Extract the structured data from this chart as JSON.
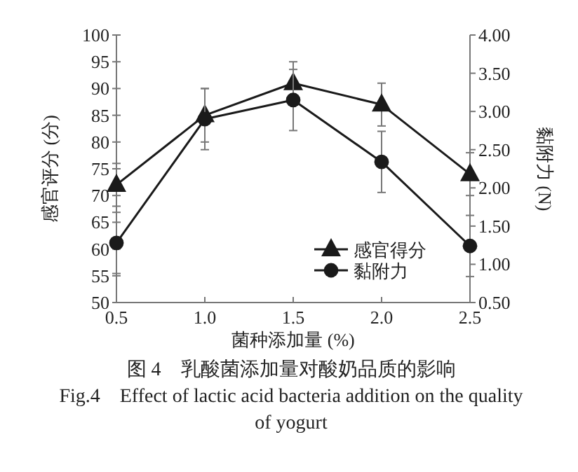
{
  "chart_data": {
    "type": "line",
    "xlabel": "菌种添加量 (%)",
    "ylabel": "感官评分 (分)",
    "y2label": "黏附力 (N)",
    "x": [
      0.5,
      1.0,
      1.5,
      2.0,
      2.5
    ],
    "xlim": [
      0.5,
      2.5
    ],
    "xticks": [
      {
        "value": 0.5,
        "label": "0.5"
      },
      {
        "value": 1.0,
        "label": "1.0"
      },
      {
        "value": 1.5,
        "label": "1.5"
      },
      {
        "value": 2.0,
        "label": "2.0"
      },
      {
        "value": 2.5,
        "label": "2.5"
      }
    ],
    "ylim": [
      50,
      100
    ],
    "yticks": [
      50,
      55,
      60,
      65,
      70,
      75,
      80,
      85,
      90,
      95,
      100
    ],
    "y2lim": [
      0.5,
      4.0
    ],
    "y2ticks": [
      {
        "value": 0.5,
        "label": "0.50"
      },
      {
        "value": 1.0,
        "label": "1.00"
      },
      {
        "value": 1.5,
        "label": "1.50"
      },
      {
        "value": 2.0,
        "label": "2.00"
      },
      {
        "value": 2.5,
        "label": "2.50"
      },
      {
        "value": 3.0,
        "label": "3.00"
      },
      {
        "value": 3.5,
        "label": "3.50"
      },
      {
        "value": 4.0,
        "label": "4.00"
      }
    ],
    "series": [
      {
        "name": "感官得分",
        "color": "#1a1a1a",
        "marker": "triangle",
        "values": [
          72,
          85,
          91,
          87,
          74
        ],
        "errors": [
          4,
          5,
          4,
          4,
          4
        ]
      },
      {
        "name": "黏附力",
        "color": "#1a1a1a",
        "marker": "circle",
        "axis": "y2",
        "values": [
          1.28,
          2.9,
          3.15,
          2.34,
          1.24
        ],
        "errors": [
          0.4,
          0.4,
          0.4,
          0.4,
          0.4
        ]
      }
    ],
    "grid": false,
    "legend": "bottom right",
    "line_style": "solid",
    "annotations": [
      "图 4　乳酸菌添加量对酸奶品质的影响",
      "Fig.4　Effect of lactic acid bacteria addition on the quality of yogurt"
    ]
  }
}
